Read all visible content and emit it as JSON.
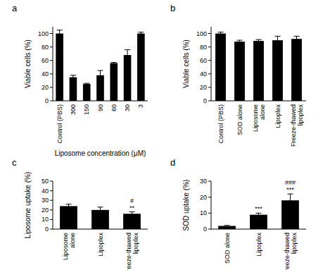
{
  "chart_data": [
    {
      "type": "bar",
      "panel": "a",
      "y_label": "Viable cells (%)",
      "x_label": "Liposome concentration (μM)",
      "categories": [
        "Control (PBS)",
        "300",
        "150",
        "90",
        "60",
        "30",
        "3"
      ],
      "values": [
        100,
        35,
        25,
        38,
        56,
        68,
        100
      ],
      "errors": [
        5,
        3,
        1,
        7,
        1,
        8,
        2
      ],
      "color": "#000000",
      "ylim": [
        0,
        110
      ],
      "yticks": [
        0,
        20,
        40,
        60,
        80,
        100
      ],
      "grid": false
    },
    {
      "type": "bar",
      "panel": "b",
      "y_label": "Viable cells (%)",
      "categories": [
        "Control (PBS)",
        "SOD alone",
        "Liposome alone",
        "Lipoplex",
        "Freeze-thawed lipoplex"
      ],
      "values": [
        100,
        88,
        89,
        90,
        92
      ],
      "errors": [
        2,
        2,
        2,
        6,
        4
      ],
      "color": "#000000",
      "ylim": [
        0,
        110
      ],
      "yticks": [
        0,
        20,
        40,
        60,
        80,
        100
      ],
      "grid": false
    },
    {
      "type": "bar",
      "panel": "c",
      "y_label": "Liposome uptake (%)",
      "categories": [
        "Liposome alone",
        "Lipoplex",
        "Freeze-thawed lipoplex"
      ],
      "values": [
        24,
        20,
        16
      ],
      "errors": [
        2,
        3,
        2
      ],
      "annotations": [
        {
          "category": 2,
          "text": "**"
        },
        {
          "category": 2,
          "text": "#"
        }
      ],
      "color": "#000000",
      "ylim": [
        0,
        50
      ],
      "yticks": [
        0,
        10,
        20,
        30,
        40,
        50
      ],
      "grid": false
    },
    {
      "type": "bar",
      "panel": "d",
      "y_label": "SOD uptake (%)",
      "categories": [
        "SOD alone",
        "Lipoplex",
        "Freeze-thawed lipoplex"
      ],
      "values": [
        2,
        9,
        18
      ],
      "errors": [
        0.3,
        1,
        4
      ],
      "annotations": [
        {
          "category": 1,
          "text": "***"
        },
        {
          "category": 2,
          "text": "***"
        },
        {
          "category": 2,
          "text": "###"
        }
      ],
      "color": "#000000",
      "ylim": [
        0,
        30
      ],
      "yticks": [
        0,
        10,
        20,
        30
      ],
      "grid": false
    }
  ]
}
